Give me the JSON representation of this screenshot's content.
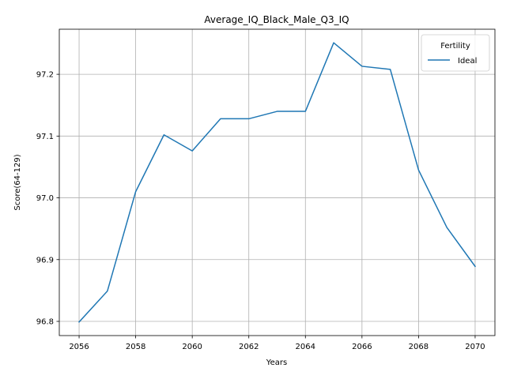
{
  "chart_data": {
    "type": "line",
    "title": "Average_IQ_Black_Male_Q3_IQ",
    "xlabel": "Years",
    "ylabel": "Score(64-129)",
    "x": [
      2056,
      2057,
      2058,
      2059,
      2060,
      2061,
      2062,
      2063,
      2064,
      2065,
      2066,
      2067,
      2068,
      2069,
      2070
    ],
    "series": [
      {
        "name": "Ideal",
        "color": "#1f77b4",
        "values": [
          96.799,
          96.849,
          97.01,
          97.102,
          97.076,
          97.128,
          97.128,
          97.14,
          97.14,
          97.251,
          97.213,
          97.208,
          97.045,
          96.952,
          96.889
        ]
      }
    ],
    "xticks": [
      "2056",
      "2058",
      "2060",
      "2062",
      "2064",
      "2066",
      "2068",
      "2070"
    ],
    "yticks": [
      "96.8",
      "96.9",
      "97.0",
      "97.1",
      "97.2"
    ],
    "xlim": [
      2055.3,
      2070.7
    ],
    "ylim": [
      96.777,
      97.273
    ],
    "grid": true,
    "legend": {
      "title": "Fertility",
      "placement": "top-right"
    }
  }
}
